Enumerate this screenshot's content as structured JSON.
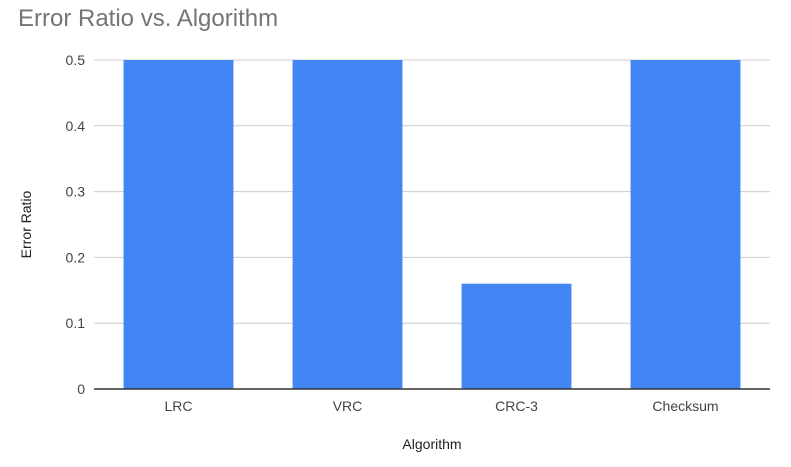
{
  "chart_data": {
    "type": "bar",
    "title": "Error Ratio vs. Algorithm",
    "xlabel": "Algorithm",
    "ylabel": "Error Ratio",
    "categories": [
      "LRC",
      "VRC",
      "CRC-3",
      "Checksum"
    ],
    "series": [
      {
        "values": [
          0.5,
          0.5,
          0.16,
          0.5
        ]
      }
    ],
    "ylim": [
      0,
      0.5
    ],
    "yticks": [
      "0",
      "0.1",
      "0.2",
      "0.3",
      "0.4",
      "0.5"
    ],
    "grid": true,
    "legend": "none",
    "colors": {
      "bar": "#4285f4",
      "grid": "#cccccc",
      "axis": "#333333"
    }
  }
}
